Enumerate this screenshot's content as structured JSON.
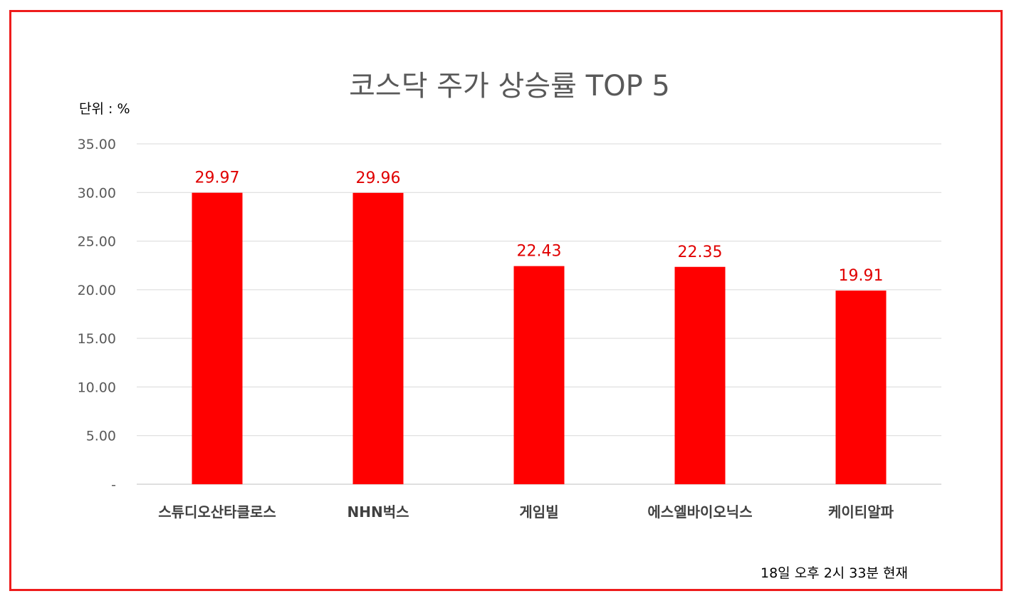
{
  "chart_data": {
    "type": "bar",
    "title": "코스닥 주가 상승률 TOP 5",
    "unit_label": "단위 : %",
    "footnote": "18일  오후 2시 33분 현재",
    "categories": [
      "스튜디오산타클로스",
      "NHN벅스",
      "게임빌",
      "에스엘바이오닉스",
      "케이티알파"
    ],
    "values": [
      29.97,
      29.96,
      22.43,
      22.35,
      19.91
    ],
    "data_labels": [
      "29.97",
      "29.96",
      "22.43",
      "22.35",
      "19.91"
    ],
    "ylim": [
      0,
      35
    ],
    "yticks": [
      0,
      5,
      10,
      15,
      20,
      25,
      30,
      35
    ],
    "ytick_labels": [
      "-",
      "5.00",
      "10.00",
      "15.00",
      "20.00",
      "25.00",
      "30.00",
      "35.00"
    ],
    "grid": true,
    "xlabel": "",
    "ylabel": "",
    "bar_color": "#ff0000",
    "label_color": "#e00000",
    "frame_color": "#ee1c1c"
  }
}
